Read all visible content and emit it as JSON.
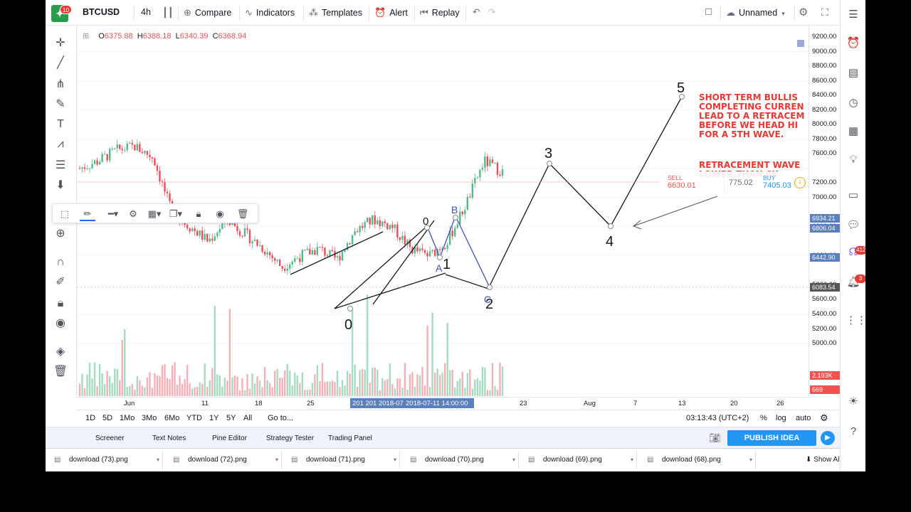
{
  "toolbar": {
    "symbol": "BTCUSD",
    "interval": "4h",
    "compare": "Compare",
    "indicators": "Indicators",
    "templates": "Templates",
    "alert": "Alert",
    "replay": "Replay",
    "layout_name": "Unnamed",
    "logo_badge": "10"
  },
  "legend": {
    "o_label": "O",
    "o": "6375.88",
    "h_label": "H",
    "h": "6388.18",
    "l_label": "L",
    "l": "6340.39",
    "c_label": "C",
    "c": "6368.94"
  },
  "price_axis": {
    "ticks": [
      "9200.00",
      "9000.00",
      "8800.00",
      "8600.00",
      "8400.00",
      "8200.00",
      "8000.00",
      "7800.00",
      "7600.00",
      "7200.00",
      "7000.00",
      "6600.00",
      "6200.00",
      "5800.00",
      "5600.00",
      "5400.00",
      "5200.00",
      "5000.00"
    ],
    "tags": [
      "6934.21",
      "6806.04",
      "6442.90",
      "6083.54",
      "2.193K",
      "669"
    ]
  },
  "time_axis": {
    "labels": [
      "Jun",
      "11",
      "18",
      "25",
      "23",
      "Aug",
      "7",
      "13",
      "20",
      "26"
    ],
    "cursor_label": "2018-07-11 14:00:00",
    "cursor_prefix": "201 201 2018-07"
  },
  "annotations": {
    "note_lines": [
      "SHORT TERM BULLIS",
      "COMPLETING CURREN",
      "LEAD TO A RETRACEM",
      " BEFORE WE HEAD HI",
      "FOR A 5TH WAVE."
    ],
    "note2_lines": [
      "RETRACEMENT WAVE",
      "LOWER THAN 6K"
    ],
    "wave_labels": [
      "0",
      "1",
      "2",
      "3",
      "4",
      "5",
      "0"
    ],
    "abc_labels": [
      "A",
      "B",
      "C"
    ]
  },
  "trade": {
    "sell_label": "SELL",
    "sell_price": "6630.01",
    "spread": "775.02",
    "buy_label": "BUY",
    "buy_price": "7405.03"
  },
  "range_bar": {
    "ranges": [
      "1D",
      "5D",
      "1Mo",
      "3Mo",
      "6Mo",
      "YTD",
      "1Y",
      "5Y",
      "All"
    ],
    "goto": "Go to...",
    "clock": "03:13:43 (UTC+2)",
    "pct": "%",
    "log": "log",
    "auto": "auto"
  },
  "bottom_tabs": [
    "Screener",
    "Text Notes",
    "Pine Editor",
    "Strategy Tester",
    "Trading Panel"
  ],
  "publish": "PUBLISH IDEA",
  "downloads": {
    "files": [
      "download (73).png",
      "download (72).png",
      "download (71).png",
      "download (70).png",
      "download (69).png",
      "download (68).png"
    ],
    "show_all": "Show All"
  },
  "right_badges": [
    "412",
    "3"
  ],
  "colors": {
    "up": "#53b987",
    "down": "#eb4d5c",
    "accent": "#2196f3",
    "note": "#e53935"
  },
  "chart_data": {
    "type": "candlestick",
    "symbol": "BTCUSD",
    "x": [
      "Jun",
      "11",
      "18",
      "25",
      "23",
      "Aug",
      "7",
      "13",
      "20",
      "26"
    ],
    "close_path": [
      7400,
      7500,
      7650,
      7700,
      7550,
      6800,
      6600,
      6400,
      6700,
      6500,
      6300,
      6050,
      6200,
      6300,
      6150,
      6550,
      6700,
      6600,
      6300,
      6200,
      6400,
      6900,
      7500,
      7350
    ],
    "elliott_points": [
      {
        "label": "0",
        "price": 5800
      },
      {
        "label": "1",
        "price": 6400
      },
      {
        "label": "2",
        "price": 6050
      },
      {
        "label": "3",
        "price": 7600
      },
      {
        "label": "4",
        "price": 6800
      },
      {
        "label": "5",
        "price": 8450
      }
    ]
  }
}
